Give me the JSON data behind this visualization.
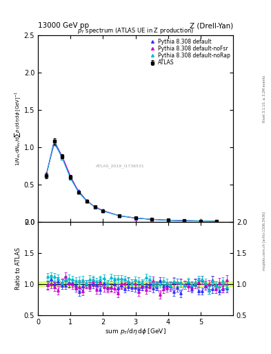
{
  "title_left": "13000 GeV pp",
  "title_right": "Z (Drell-Yan)",
  "plot_title": "p_{T} spectrum (ATLAS UE in Z production)",
  "ylabel_main": "1/N_{ev} dN_{ev}/dsum p_{T}/d\\eta d\\phi [GeV]^{-1}",
  "ylabel_ratio": "Ratio to ATLAS",
  "xlabel": "sum p_{T}/d\\eta d\\phi [GeV]",
  "watermark": "ATLAS_2019_I1736531",
  "rivet_label": "Rivet 3.1.10, ≥ 3.2M events",
  "mcplots_label": "mcplots.cern.ch [arXiv:1306.3436]",
  "ylim_main": [
    0.0,
    2.5
  ],
  "ylim_ratio": [
    0.5,
    2.0
  ],
  "xlim": [
    0.0,
    6.0
  ],
  "yticks_main": [
    0.0,
    0.5,
    1.0,
    1.5,
    2.0,
    2.5
  ],
  "yticks_ratio": [
    0.5,
    1.0,
    1.5,
    2.0
  ],
  "xticks": [
    0,
    1,
    2,
    3,
    4,
    5
  ],
  "colors": {
    "ATLAS": "#000000",
    "default": "#3333ff",
    "noFsr": "#cc00cc",
    "noRap": "#00bbcc"
  },
  "legend_entries": [
    "ATLAS",
    "Pythia 8.308 default",
    "Pythia 8.308 default-noFsr",
    "Pythia 8.308 default-noRap"
  ],
  "atlas_x": [
    0.25,
    0.5,
    0.75,
    1.0,
    1.25,
    1.5,
    1.75,
    2.0,
    2.5,
    3.0,
    3.5,
    4.0,
    4.5,
    5.0,
    5.5
  ],
  "atlas_y": [
    0.62,
    1.08,
    0.88,
    0.6,
    0.4,
    0.28,
    0.2,
    0.145,
    0.082,
    0.05,
    0.033,
    0.022,
    0.016,
    0.012,
    0.009
  ],
  "atlas_yerr": [
    0.04,
    0.04,
    0.03,
    0.025,
    0.018,
    0.013,
    0.01,
    0.007,
    0.005,
    0.003,
    0.002,
    0.002,
    0.001,
    0.001,
    0.001
  ]
}
